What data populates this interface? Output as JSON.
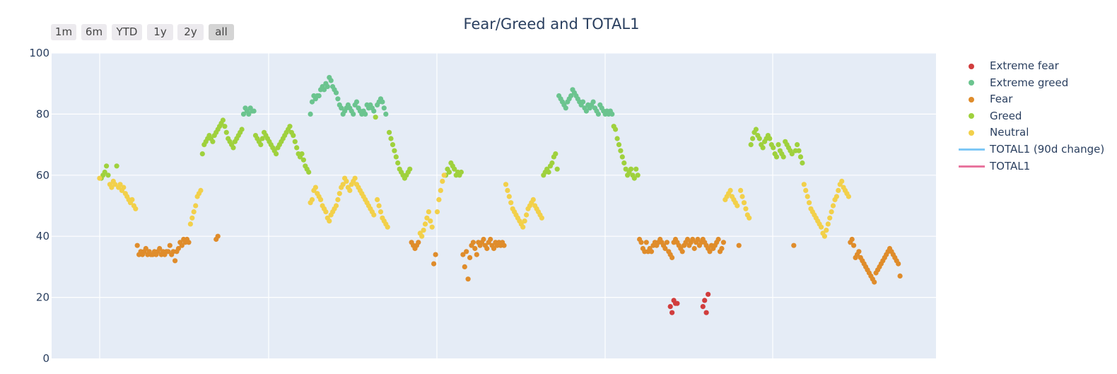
{
  "rangeselector": {
    "buttons": [
      {
        "label": "1m",
        "active": false
      },
      {
        "label": "6m",
        "active": false
      },
      {
        "label": "YTD",
        "active": false
      },
      {
        "label": "1y",
        "active": false
      },
      {
        "label": "2y",
        "active": false
      },
      {
        "label": "all",
        "active": true
      }
    ]
  },
  "chart_data": {
    "type": "scatter",
    "title": "Fear/Greed and TOTAL1",
    "xlabel": "",
    "ylabel": "",
    "x_unit": "day index (date axis, tick labels not shown)",
    "xlim": [
      -28,
      488
    ],
    "ylim": [
      0,
      100
    ],
    "yticks": [
      0,
      20,
      40,
      60,
      80,
      100
    ],
    "grid": true,
    "legend_position": "right",
    "series": [
      {
        "name": "Extreme fear",
        "color": "#d13d3d",
        "mode": "markers",
        "x": [
          333,
          334,
          335,
          336,
          337,
          352,
          353,
          354,
          355
        ],
        "y": [
          17,
          15,
          19,
          18,
          18,
          17,
          19,
          15,
          21
        ]
      },
      {
        "name": "Extreme greed",
        "color": "#6bc48f",
        "mode": "markers",
        "x": [
          84,
          85,
          86,
          87,
          88,
          89,
          90,
          123,
          124,
          125,
          126,
          127,
          128,
          129,
          130,
          131,
          132,
          133,
          134,
          135,
          136,
          137,
          138,
          139,
          140,
          141,
          142,
          143,
          144,
          145,
          146,
          147,
          148,
          149,
          150,
          151,
          152,
          153,
          154,
          155,
          156,
          157,
          158,
          159,
          160,
          162,
          163,
          164,
          165,
          166,
          167,
          268,
          269,
          270,
          271,
          272,
          273,
          274,
          275,
          276,
          277,
          278,
          279,
          280,
          281,
          282,
          283,
          284,
          285,
          286,
          287,
          288,
          289,
          290,
          291,
          292,
          293,
          294,
          295,
          296,
          297,
          298,
          299
        ],
        "y": [
          80,
          82,
          81,
          80,
          82,
          81,
          81,
          80,
          84,
          86,
          85,
          86,
          86,
          88,
          89,
          88,
          90,
          89,
          92,
          91,
          89,
          88,
          87,
          85,
          83,
          82,
          80,
          81,
          82,
          83,
          82,
          81,
          80,
          83,
          84,
          82,
          81,
          80,
          81,
          80,
          83,
          82,
          83,
          82,
          81,
          83,
          84,
          85,
          84,
          82,
          80,
          86,
          85,
          84,
          83,
          82,
          84,
          85,
          86,
          88,
          87,
          86,
          85,
          84,
          83,
          84,
          82,
          81,
          83,
          82,
          83,
          84,
          82,
          81,
          80,
          83,
          82,
          81,
          80,
          81,
          80,
          81,
          80
        ]
      },
      {
        "name": "Fear",
        "color": "#df8c2b",
        "mode": "markers",
        "x": [
          22,
          23,
          24,
          25,
          26,
          27,
          28,
          29,
          30,
          31,
          32,
          33,
          34,
          35,
          36,
          37,
          38,
          39,
          40,
          41,
          42,
          43,
          44,
          45,
          46,
          47,
          48,
          49,
          50,
          51,
          52,
          68,
          69,
          182,
          183,
          184,
          185,
          186,
          195,
          196,
          212,
          213,
          214,
          215,
          216,
          217,
          218,
          219,
          220,
          221,
          222,
          223,
          224,
          225,
          226,
          227,
          228,
          229,
          230,
          231,
          232,
          233,
          234,
          235,
          236,
          315,
          316,
          317,
          318,
          319,
          320,
          321,
          322,
          323,
          324,
          325,
          326,
          327,
          328,
          329,
          330,
          331,
          332,
          333,
          334,
          335,
          336,
          337,
          338,
          339,
          340,
          341,
          342,
          343,
          344,
          345,
          346,
          347,
          348,
          349,
          350,
          351,
          352,
          353,
          354,
          355,
          356,
          357,
          358,
          359,
          360,
          361,
          362,
          363,
          364,
          373,
          405,
          438,
          439,
          440,
          441,
          442,
          443,
          444,
          445,
          446,
          447,
          448,
          449,
          450,
          451,
          452,
          453,
          454,
          455,
          456,
          457,
          458,
          459,
          460,
          461,
          462,
          463,
          464,
          465,
          466,
          467
        ],
        "y": [
          37,
          34,
          35,
          34,
          35,
          36,
          34,
          35,
          34,
          34,
          35,
          34,
          35,
          36,
          34,
          35,
          34,
          35,
          35,
          37,
          34,
          35,
          32,
          35,
          36,
          38,
          37,
          39,
          38,
          39,
          38,
          39,
          40,
          38,
          37,
          36,
          37,
          38,
          31,
          34,
          34,
          30,
          35,
          26,
          33,
          37,
          38,
          36,
          34,
          38,
          37,
          38,
          39,
          37,
          36,
          38,
          39,
          37,
          36,
          38,
          37,
          38,
          37,
          38,
          37,
          39,
          38,
          36,
          35,
          38,
          35,
          36,
          35,
          37,
          38,
          37,
          38,
          39,
          38,
          37,
          36,
          38,
          35,
          34,
          33,
          38,
          39,
          38,
          37,
          36,
          35,
          37,
          38,
          39,
          37,
          38,
          39,
          36,
          38,
          39,
          37,
          38,
          39,
          38,
          37,
          36,
          35,
          37,
          36,
          37,
          38,
          39,
          35,
          36,
          38,
          37,
          37,
          38,
          39,
          37,
          33,
          34,
          35,
          33,
          32,
          31,
          30,
          29,
          28,
          27,
          26,
          25,
          28,
          29,
          30,
          31,
          32,
          33,
          34,
          35,
          36,
          35,
          34,
          33,
          32,
          31,
          27
        ]
      },
      {
        "name": "Greed",
        "color": "#9fd13d",
        "mode": "markers",
        "x": [
          1,
          2,
          3,
          4,
          5,
          10,
          60,
          61,
          62,
          63,
          64,
          65,
          66,
          67,
          68,
          69,
          70,
          71,
          72,
          73,
          74,
          75,
          76,
          77,
          78,
          79,
          80,
          81,
          82,
          83,
          91,
          92,
          93,
          94,
          95,
          96,
          97,
          98,
          99,
          100,
          101,
          102,
          103,
          104,
          105,
          106,
          107,
          108,
          109,
          110,
          111,
          112,
          113,
          114,
          115,
          116,
          117,
          118,
          119,
          120,
          121,
          122,
          161,
          169,
          170,
          171,
          172,
          173,
          174,
          175,
          176,
          177,
          178,
          179,
          180,
          181,
          202,
          203,
          204,
          205,
          206,
          207,
          208,
          209,
          210,
          211,
          259,
          260,
          261,
          262,
          263,
          264,
          265,
          266,
          267,
          300,
          301,
          302,
          303,
          304,
          305,
          306,
          307,
          308,
          309,
          310,
          311,
          312,
          313,
          314,
          380,
          381,
          382,
          383,
          384,
          385,
          386,
          387,
          388,
          389,
          390,
          391,
          392,
          393,
          394,
          395,
          396,
          397,
          398,
          399,
          400,
          401,
          402,
          403,
          404,
          406,
          407,
          408,
          409,
          410
        ],
        "y": [
          59,
          60,
          61,
          63,
          60,
          63,
          67,
          70,
          71,
          72,
          73,
          72,
          71,
          73,
          74,
          75,
          76,
          77,
          78,
          76,
          74,
          72,
          71,
          70,
          69,
          71,
          72,
          73,
          74,
          75,
          73,
          72,
          71,
          70,
          72,
          74,
          73,
          72,
          71,
          70,
          69,
          68,
          67,
          69,
          70,
          71,
          72,
          73,
          74,
          75,
          76,
          74,
          73,
          71,
          69,
          67,
          66,
          67,
          65,
          63,
          62,
          61,
          79,
          74,
          72,
          70,
          68,
          66,
          64,
          62,
          61,
          60,
          59,
          60,
          61,
          62,
          60,
          62,
          61,
          64,
          63,
          62,
          60,
          61,
          60,
          61,
          60,
          61,
          62,
          61,
          63,
          64,
          66,
          67,
          62,
          76,
          75,
          72,
          70,
          68,
          66,
          64,
          62,
          60,
          61,
          62,
          60,
          59,
          62,
          60,
          70,
          72,
          74,
          75,
          73,
          72,
          70,
          69,
          71,
          72,
          73,
          72,
          70,
          69,
          67,
          66,
          70,
          68,
          67,
          66,
          71,
          70,
          69,
          68,
          67,
          68,
          70,
          68,
          66,
          64
        ]
      },
      {
        "name": "Neutral",
        "color": "#f2d04a",
        "mode": "markers",
        "x": [
          0,
          6,
          7,
          8,
          9,
          11,
          12,
          13,
          14,
          15,
          16,
          17,
          18,
          19,
          20,
          21,
          53,
          54,
          55,
          56,
          57,
          58,
          59,
          123,
          124,
          125,
          126,
          127,
          128,
          129,
          130,
          131,
          132,
          133,
          134,
          135,
          136,
          137,
          138,
          139,
          140,
          141,
          142,
          143,
          144,
          145,
          146,
          147,
          148,
          149,
          150,
          151,
          152,
          153,
          154,
          155,
          156,
          157,
          158,
          159,
          160,
          162,
          163,
          164,
          165,
          166,
          167,
          168,
          187,
          188,
          189,
          190,
          191,
          192,
          193,
          194,
          197,
          198,
          199,
          200,
          201,
          237,
          238,
          239,
          240,
          241,
          242,
          243,
          244,
          245,
          246,
          247,
          248,
          249,
          250,
          251,
          252,
          253,
          254,
          255,
          256,
          257,
          258,
          365,
          366,
          367,
          368,
          369,
          370,
          371,
          372,
          374,
          375,
          376,
          377,
          378,
          379,
          411,
          412,
          413,
          414,
          415,
          416,
          417,
          418,
          419,
          420,
          421,
          422,
          423,
          424,
          425,
          426,
          427,
          428,
          429,
          430,
          431,
          432,
          433,
          434,
          435,
          436,
          437
        ],
        "y": [
          59,
          57,
          56,
          58,
          57,
          56,
          57,
          55,
          56,
          54,
          53,
          52,
          51,
          52,
          50,
          49,
          44,
          46,
          48,
          50,
          53,
          54,
          55,
          51,
          52,
          55,
          56,
          54,
          53,
          52,
          50,
          49,
          48,
          46,
          45,
          47,
          48,
          49,
          50,
          52,
          54,
          56,
          57,
          59,
          58,
          56,
          55,
          57,
          58,
          59,
          57,
          56,
          55,
          54,
          53,
          52,
          51,
          50,
          49,
          48,
          47,
          52,
          50,
          48,
          46,
          45,
          44,
          43,
          41,
          40,
          42,
          44,
          46,
          48,
          45,
          43,
          48,
          52,
          55,
          58,
          60,
          57,
          55,
          53,
          51,
          49,
          48,
          47,
          46,
          45,
          44,
          43,
          45,
          47,
          49,
          50,
          51,
          52,
          50,
          49,
          48,
          47,
          46,
          52,
          53,
          54,
          55,
          53,
          52,
          51,
          50,
          55,
          53,
          51,
          49,
          47,
          46,
          57,
          55,
          53,
          51,
          49,
          48,
          47,
          46,
          45,
          44,
          43,
          41,
          40,
          42,
          44,
          46,
          48,
          50,
          52,
          53,
          55,
          57,
          58,
          56,
          55,
          54,
          53
        ]
      },
      {
        "name": "TOTAL1 (90d change)",
        "color": "#7ec8f6",
        "mode": "lines",
        "x": [],
        "y": []
      },
      {
        "name": "TOTAL1",
        "color": "#e8759e",
        "mode": "lines",
        "x": [],
        "y": []
      }
    ]
  }
}
